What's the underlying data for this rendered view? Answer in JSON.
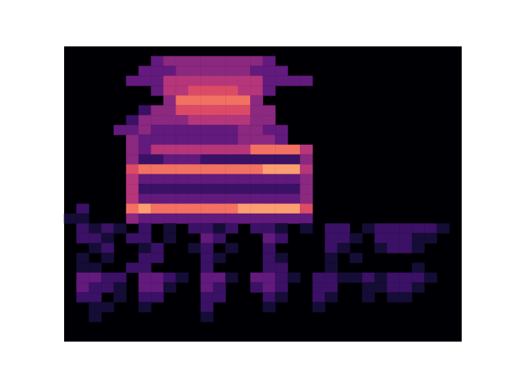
{
  "chart_data": {
    "type": "heatmap",
    "tick_labels": false,
    "cells": [
      [
        0,
        0,
        0,
        0,
        0,
        0,
        0,
        0,
        0,
        0,
        0,
        0,
        0,
        0,
        0,
        0,
        0,
        0,
        0,
        0,
        0,
        0,
        0,
        0,
        0,
        0,
        0,
        0,
        0,
        0,
        0,
        0
      ],
      [
        0,
        0,
        0,
        0,
        0,
        0,
        0,
        3,
        4,
        4,
        4,
        4,
        4,
        4,
        4,
        4,
        3,
        0,
        0,
        0,
        0,
        0,
        0,
        0,
        0,
        0,
        0,
        0,
        0,
        0,
        0,
        0
      ],
      [
        0,
        0,
        0,
        0,
        0,
        0,
        3,
        3,
        3,
        4,
        4,
        4,
        4,
        4,
        4,
        3,
        3,
        3,
        0,
        0,
        0,
        0,
        0,
        0,
        0,
        0,
        0,
        0,
        0,
        0,
        0,
        0
      ],
      [
        0,
        0,
        0,
        0,
        0,
        3,
        3,
        3,
        5,
        5,
        5,
        5,
        5,
        5,
        5,
        5,
        3,
        3,
        3,
        3,
        0,
        0,
        0,
        0,
        0,
        0,
        0,
        0,
        0,
        0,
        0,
        0
      ],
      [
        0,
        0,
        0,
        0,
        0,
        0,
        0,
        3,
        5,
        5,
        6,
        6,
        6,
        6,
        5,
        5,
        3,
        0,
        0,
        0,
        0,
        0,
        0,
        0,
        0,
        0,
        0,
        0,
        0,
        0,
        0,
        0
      ],
      [
        0,
        0,
        0,
        0,
        0,
        0,
        0,
        0,
        4,
        7,
        7,
        7,
        7,
        7,
        7,
        4,
        0,
        0,
        0,
        0,
        0,
        0,
        0,
        0,
        0,
        0,
        0,
        0,
        0,
        0,
        0,
        0
      ],
      [
        0,
        0,
        0,
        0,
        0,
        0,
        2,
        4,
        4,
        6,
        6,
        6,
        6,
        6,
        6,
        4,
        4,
        0,
        0,
        0,
        0,
        0,
        0,
        0,
        0,
        0,
        0,
        0,
        0,
        0,
        0,
        0
      ],
      [
        0,
        0,
        0,
        0,
        0,
        2,
        4,
        4,
        4,
        4,
        5,
        5,
        5,
        5,
        5,
        4,
        4,
        0,
        0,
        0,
        0,
        0,
        0,
        0,
        0,
        0,
        0,
        0,
        0,
        0,
        0,
        0
      ],
      [
        0,
        0,
        0,
        0,
        3,
        3,
        4,
        3,
        3,
        3,
        3,
        3,
        3,
        3,
        4,
        4,
        3,
        3,
        0,
        0,
        0,
        0,
        0,
        0,
        0,
        0,
        0,
        0,
        0,
        0,
        0,
        0
      ],
      [
        0,
        0,
        0,
        0,
        0,
        4,
        3,
        3,
        3,
        3,
        3,
        3,
        3,
        3,
        4,
        4,
        4,
        3,
        0,
        0,
        0,
        0,
        0,
        0,
        0,
        0,
        0,
        0,
        0,
        0,
        0,
        0
      ],
      [
        0,
        0,
        0,
        0,
        0,
        4,
        3,
        5,
        5,
        5,
        5,
        5,
        5,
        5,
        5,
        7,
        7,
        7,
        7,
        5,
        0,
        0,
        0,
        0,
        0,
        0,
        0,
        0,
        0,
        0,
        0,
        0
      ],
      [
        0,
        0,
        0,
        0,
        0,
        4,
        2,
        2,
        3,
        3,
        3,
        2,
        2,
        2,
        2,
        2,
        2,
        2,
        2,
        4,
        0,
        0,
        0,
        0,
        0,
        0,
        0,
        0,
        0,
        0,
        0,
        0
      ],
      [
        0,
        0,
        0,
        0,
        0,
        6,
        7,
        7,
        7,
        7,
        7,
        7,
        7,
        7,
        7,
        7,
        8,
        8,
        8,
        5,
        0,
        0,
        0,
        0,
        0,
        0,
        0,
        0,
        0,
        0,
        0,
        0
      ],
      [
        0,
        0,
        0,
        0,
        0,
        5,
        3,
        3,
        3,
        3,
        3,
        3,
        3,
        3,
        3,
        3,
        3,
        3,
        3,
        4,
        0,
        0,
        0,
        0,
        0,
        0,
        0,
        0,
        0,
        0,
        0,
        0
      ],
      [
        0,
        0,
        0,
        0,
        0,
        5,
        2,
        2,
        2,
        2,
        2,
        2,
        2,
        2,
        2,
        2,
        2,
        2,
        2,
        4,
        0,
        0,
        0,
        0,
        0,
        0,
        0,
        0,
        0,
        0,
        0,
        0
      ],
      [
        0,
        0,
        0,
        0,
        0,
        5,
        3,
        3,
        3,
        3,
        3,
        3,
        3,
        3,
        3,
        3,
        3,
        3,
        3,
        4,
        0,
        0,
        0,
        0,
        0,
        0,
        0,
        0,
        0,
        0,
        0,
        0
      ],
      [
        0,
        2,
        0,
        0,
        0,
        7,
        8,
        7,
        7,
        7,
        7,
        7,
        7,
        7,
        8,
        8,
        8,
        8,
        8,
        6,
        0,
        0,
        0,
        0,
        0,
        0,
        0,
        0,
        0,
        0,
        0,
        0
      ],
      [
        1,
        1,
        0,
        0,
        0,
        4,
        3,
        3,
        3,
        3,
        3,
        3,
        3,
        3,
        3,
        3,
        3,
        3,
        3,
        3,
        0,
        0,
        0,
        0,
        0,
        0,
        0,
        0,
        0,
        0,
        0,
        0
      ],
      [
        0,
        2,
        1,
        2,
        1,
        0,
        2,
        0,
        1,
        0,
        2,
        2,
        1,
        2,
        0,
        2,
        2,
        1,
        0,
        1,
        0,
        2,
        2,
        0,
        1,
        2,
        2,
        2,
        2,
        2,
        1,
        0
      ],
      [
        0,
        2,
        2,
        1,
        0,
        2,
        2,
        0,
        1,
        0,
        0,
        3,
        2,
        0,
        0,
        0,
        3,
        2,
        0,
        0,
        0,
        2,
        2,
        1,
        0,
        2,
        2,
        2,
        1,
        1,
        0,
        0
      ],
      [
        0,
        0,
        1,
        2,
        0,
        0,
        1,
        2,
        0,
        0,
        1,
        2,
        0,
        1,
        0,
        0,
        2,
        0,
        0,
        0,
        0,
        2,
        1,
        0,
        0,
        1,
        2,
        2,
        1,
        0,
        0,
        0
      ],
      [
        0,
        1,
        0,
        1,
        0,
        0,
        2,
        2,
        0,
        0,
        0,
        2,
        1,
        0,
        0,
        0,
        2,
        1,
        0,
        0,
        0,
        1,
        0,
        1,
        0,
        0,
        0,
        0,
        0,
        0,
        0,
        0
      ],
      [
        0,
        1,
        1,
        0,
        0,
        2,
        2,
        0,
        0,
        0,
        0,
        2,
        0,
        0,
        0,
        0,
        2,
        2,
        0,
        0,
        0,
        1,
        0,
        0,
        0,
        0,
        0,
        0,
        1,
        0,
        0,
        0
      ],
      [
        0,
        3,
        3,
        2,
        2,
        0,
        3,
        3,
        2,
        1,
        0,
        3,
        3,
        1,
        0,
        3,
        3,
        2,
        1,
        0,
        2,
        2,
        1,
        1,
        2,
        1,
        2,
        2,
        2,
        1,
        0,
        0
      ],
      [
        0,
        3,
        2,
        2,
        1,
        0,
        3,
        3,
        1,
        0,
        0,
        3,
        2,
        0,
        0,
        2,
        3,
        2,
        0,
        0,
        2,
        2,
        0,
        0,
        1,
        1,
        2,
        2,
        1,
        0,
        0,
        0
      ],
      [
        0,
        2,
        2,
        0,
        1,
        0,
        2,
        2,
        0,
        0,
        0,
        2,
        2,
        0,
        0,
        0,
        2,
        1,
        0,
        0,
        2,
        1,
        0,
        0,
        1,
        0,
        1,
        1,
        0,
        0,
        0,
        0
      ],
      [
        0,
        0,
        1,
        1,
        0,
        0,
        1,
        0,
        0,
        0,
        0,
        2,
        0,
        0,
        0,
        0,
        1,
        0,
        0,
        0,
        1,
        0,
        0,
        0,
        0,
        0,
        0,
        0,
        0,
        0,
        0,
        0
      ],
      [
        0,
        0,
        1,
        0,
        0,
        0,
        0,
        0,
        0,
        0,
        0,
        1,
        0,
        0,
        0,
        0,
        0,
        0,
        0,
        0,
        0,
        0,
        0,
        0,
        0,
        0,
        0,
        0,
        0,
        0,
        0,
        0
      ],
      [
        0,
        0,
        0,
        0,
        0,
        0,
        0,
        0,
        0,
        0,
        0,
        0,
        0,
        0,
        0,
        0,
        0,
        0,
        0,
        0,
        0,
        0,
        0,
        0,
        0,
        0,
        0,
        0,
        0,
        0,
        0,
        0
      ],
      [
        0,
        0,
        0,
        0,
        0,
        0,
        0,
        0,
        0,
        0,
        0,
        0,
        0,
        0,
        0,
        0,
        0,
        0,
        0,
        0,
        0,
        0,
        0,
        0,
        0,
        0,
        0,
        0,
        0,
        0,
        0,
        0
      ]
    ]
  }
}
